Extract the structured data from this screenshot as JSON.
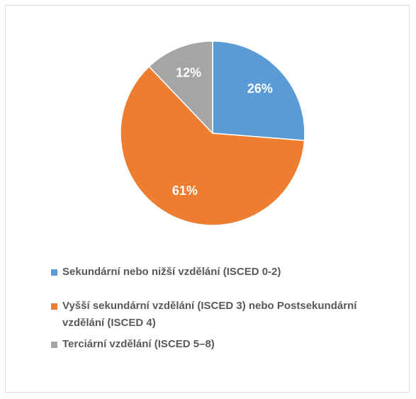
{
  "chart_data": {
    "type": "pie",
    "categories": [
      "Sekundární nebo nižší vzdělání (ISCED 0-2)",
      "Vyšší sekundární vzdělání (ISCED 3) nebo Postsekundární vzdělání (ISCED 4)",
      "Terciární vzdělání (ISCED 5–8)"
    ],
    "values": [
      26,
      61,
      12
    ],
    "value_labels": [
      "26%",
      "61%",
      "12%"
    ],
    "colors": [
      "#5b9bd5",
      "#ed7d31",
      "#a5a5a5"
    ],
    "legend": "bottom"
  }
}
